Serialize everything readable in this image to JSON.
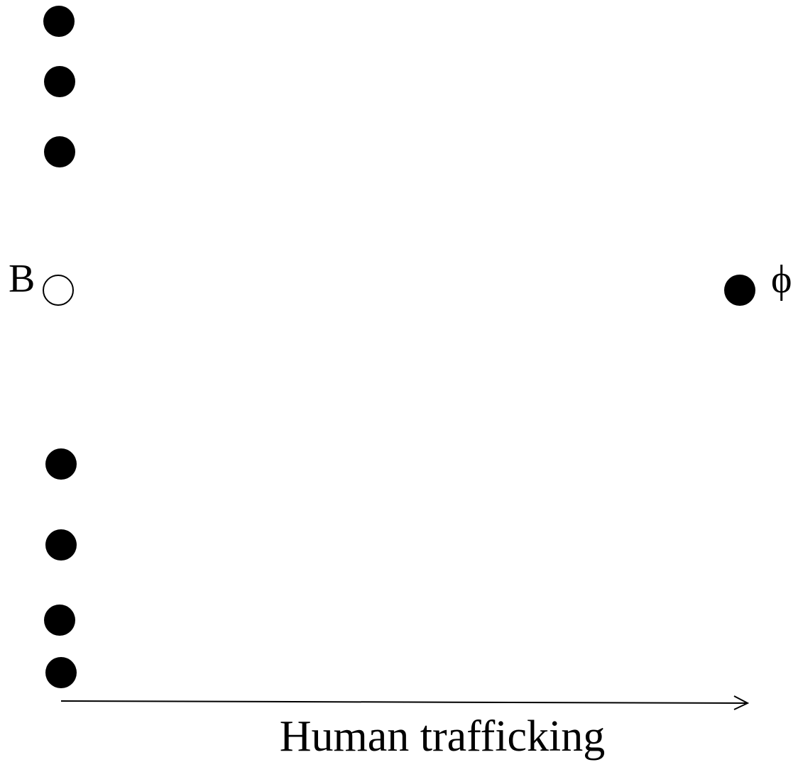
{
  "nodes": [
    {
      "label": "B"
    },
    {
      "label": "ϕ"
    }
  ],
  "axis": {
    "label": "Human trafficking"
  }
}
